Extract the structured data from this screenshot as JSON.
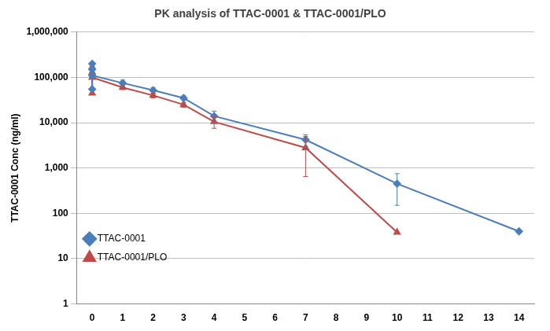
{
  "chart_data": {
    "type": "line",
    "title": "PK analysis of TTAC-0001 & TTAC-0001/PLO",
    "y_label": "TTAC-0001 Conc (ng/ml)",
    "log": "y",
    "grid": "y",
    "legend": "upper right",
    "xlim": [
      -0.5,
      14.5
    ],
    "xticks": [
      0,
      1,
      2,
      3,
      4,
      5,
      6,
      7,
      8,
      9,
      10,
      11,
      12,
      13,
      14
    ],
    "ylim": [
      1,
      1000000
    ],
    "yticks": [
      1,
      10,
      100,
      {
        "value": 1000,
        "label": "1,000"
      },
      {
        "value": 10000,
        "label": "10,000"
      },
      {
        "value": 100000,
        "label": "100,000"
      },
      {
        "value": 1000000,
        "label": "1,000,000"
      }
    ],
    "series": [
      {
        "name": "TTAC-0001",
        "color": "#4a7ebb",
        "marker": "diamond",
        "x": [
          0,
          0,
          0,
          0,
          1,
          2,
          3,
          4,
          7,
          10,
          14
        ],
        "values": [
          55000,
          200000,
          150000,
          110000,
          75000,
          52000,
          35000,
          14000,
          4200,
          450,
          40
        ],
        "errors": [
          null,
          null,
          null,
          null,
          12000,
          8000,
          4000,
          4000,
          1200,
          300,
          null
        ]
      },
      {
        "name": "TTAC-0001/PLO",
        "color": "#be4b48",
        "marker": "triangle",
        "x": [
          0,
          0,
          0,
          0,
          1,
          2,
          3,
          4,
          7,
          10
        ],
        "values": [
          45000,
          170000,
          130000,
          100000,
          60000,
          40000,
          25000,
          10500,
          2800,
          38
        ],
        "errors": [
          null,
          null,
          null,
          null,
          6000,
          5000,
          3000,
          3000,
          2150,
          null
        ]
      }
    ]
  }
}
